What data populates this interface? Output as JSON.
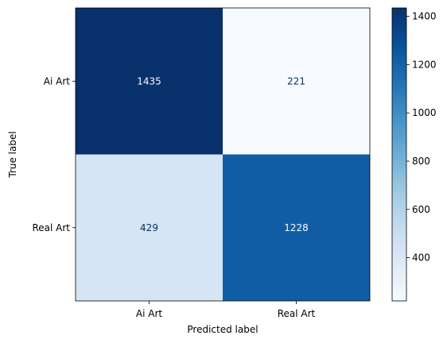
{
  "chart_data": {
    "type": "heatmap",
    "title": "",
    "xlabel": "Predicted label",
    "ylabel": "True label",
    "x_categories": [
      "Ai Art",
      "Real Art"
    ],
    "y_categories": [
      "Ai Art",
      "Real Art"
    ],
    "values": [
      [
        1435,
        221
      ],
      [
        429,
        1228
      ]
    ],
    "colormap": "Blues",
    "color_range": [
      221,
      1435
    ],
    "colorbar_ticks": [
      "400",
      "600",
      "800",
      "1000",
      "1200",
      "1400"
    ],
    "colorbar_tick_values": [
      400,
      600,
      800,
      1000,
      1200,
      1400
    ],
    "colors": {
      "low": "#f7fbff",
      "high": "#08306b",
      "text_dark_cell": "#f7fbff",
      "text_light_cell": "#08306b"
    }
  }
}
